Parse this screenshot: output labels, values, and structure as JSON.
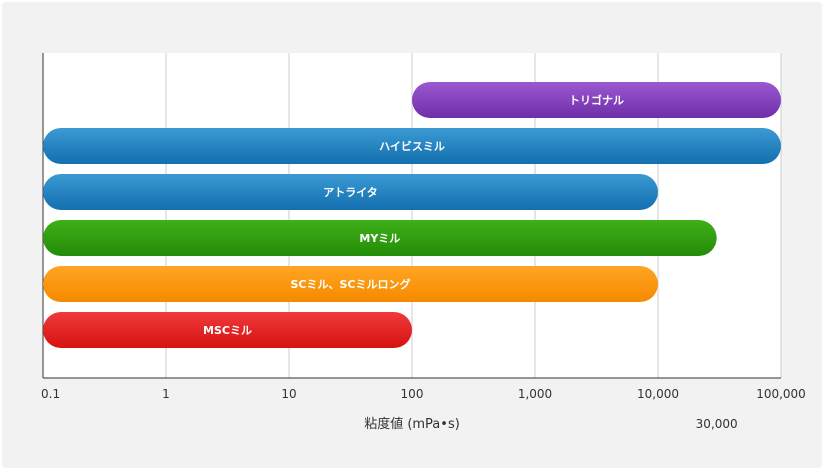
{
  "chart_data": {
    "type": "bar",
    "orientation": "horizontal",
    "scale": "log",
    "xlabel": "粘度値 (mPa•s)",
    "xlim": [
      0.1,
      100000
    ],
    "ticks": [
      {
        "value": 0.1,
        "label": "0.1"
      },
      {
        "value": 1,
        "label": "1"
      },
      {
        "value": 10,
        "label": "10"
      },
      {
        "value": 100,
        "label": "100"
      },
      {
        "value": 1000,
        "label": "1,000"
      },
      {
        "value": 10000,
        "label": "10,000"
      },
      {
        "value": 100000,
        "label": "100,000"
      }
    ],
    "extra_tick": {
      "value": 30000,
      "label": "30,000"
    },
    "grid": true,
    "series": [
      {
        "label": "トリゴナル",
        "start": 100,
        "end": 100000,
        "color_top": "#9b59d0",
        "color_bottom": "#6f2ea8"
      },
      {
        "label": "ハイビスミル",
        "start": 0.1,
        "end": 100000,
        "color_top": "#3b9ad4",
        "color_bottom": "#136fae"
      },
      {
        "label": "アトライタ",
        "start": 0.1,
        "end": 10000,
        "color_top": "#3b9ad4",
        "color_bottom": "#136fae"
      },
      {
        "label": "MYミル",
        "start": 0.1,
        "end": 30000,
        "color_top": "#3fb018",
        "color_bottom": "#248c08"
      },
      {
        "label": "SCミル、SCミルロング",
        "start": 0.1,
        "end": 10000,
        "color_top": "#ffa524",
        "color_bottom": "#f58a00"
      },
      {
        "label": "MSCミル",
        "start": 0.1,
        "end": 100,
        "color_top": "#f03a3a",
        "color_bottom": "#d61212"
      }
    ]
  }
}
